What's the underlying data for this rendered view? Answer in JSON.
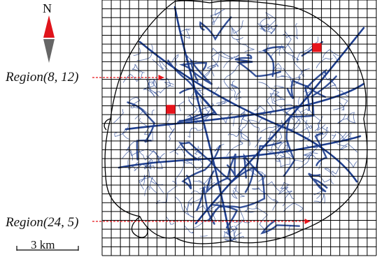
{
  "compass": {
    "letter": "N",
    "icon": "north-arrow-icon",
    "north_color": "#e0141b",
    "south_color": "#666666"
  },
  "regions": [
    {
      "label": "Region(8, 12)",
      "row": 8,
      "col": 12
    },
    {
      "label": "Region(24, 5)",
      "row": 24,
      "col": 5
    }
  ],
  "scale_bar": {
    "label": "3 km"
  },
  "colors": {
    "grid": "#000000",
    "roads": "#1f3f8f",
    "boundary": "#000000",
    "highlight": "#e8141b",
    "arrow": "#e8141b"
  }
}
